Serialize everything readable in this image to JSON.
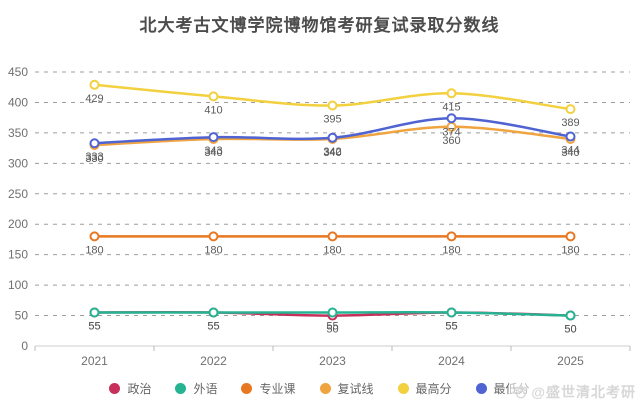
{
  "chart_data": {
    "type": "line",
    "title": "北大考古文博学院博物馆考研复试录取分数线",
    "categories": [
      "2021",
      "2022",
      "2023",
      "2024",
      "2025"
    ],
    "series": [
      {
        "id": "politics",
        "name": "政治",
        "color": "#c7305b",
        "values": [
          55,
          55,
          50,
          55,
          50
        ]
      },
      {
        "id": "foreign-language",
        "name": "外语",
        "color": "#26b394",
        "values": [
          55,
          55,
          55,
          55,
          50
        ]
      },
      {
        "id": "major-course",
        "name": "专业课",
        "color": "#e87722",
        "values": [
          180,
          180,
          180,
          180,
          180
        ]
      },
      {
        "id": "retest-line",
        "name": "复试线",
        "color": "#efa440",
        "values": [
          330,
          340,
          340,
          360,
          340
        ]
      },
      {
        "id": "max-score",
        "name": "最高分",
        "color": "#f2d03e",
        "values": [
          429,
          410,
          395,
          415,
          389
        ]
      },
      {
        "id": "min-score",
        "name": "最低分",
        "color": "#4f63d2",
        "values": [
          333,
          343,
          342,
          374,
          344
        ]
      }
    ],
    "ylim": [
      0,
      450
    ],
    "ytick_step": 50,
    "grid": "dashed-horizontal",
    "legend_position": "bottom",
    "smooth": true,
    "point_labels": "below-points"
  },
  "watermark": {
    "text": "@盛世清北考研",
    "icon": "paw-icon"
  }
}
